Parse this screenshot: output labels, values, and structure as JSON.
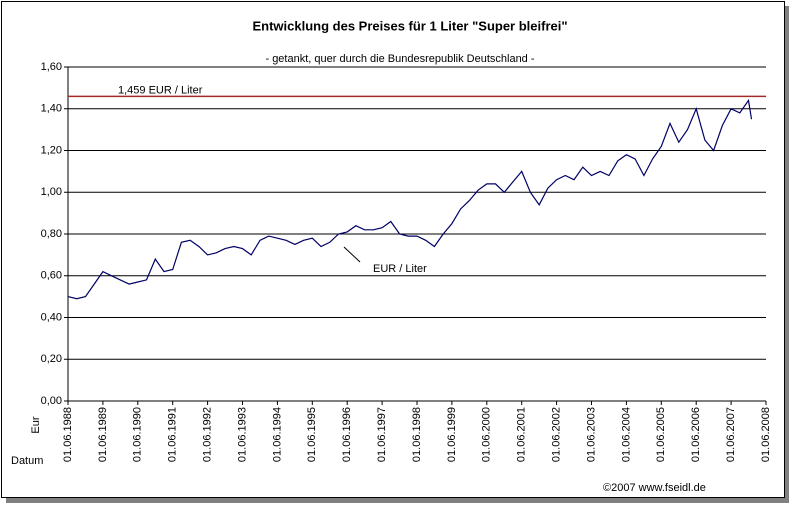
{
  "chart_data": {
    "type": "line",
    "title": "Entwicklung des Preises für 1 Liter \"Super bleifrei\"",
    "subtitle": "- getankt, quer durch die Bundesrepublik Deutschland -",
    "y_label": "Eur",
    "x_label": "Datum",
    "footer": "©2007 www.fseidl.de",
    "x": [
      "01.06.1988",
      "01.09.1988",
      "01.12.1988",
      "01.03.1989",
      "01.06.1989",
      "01.09.1989",
      "01.12.1989",
      "01.03.1990",
      "01.06.1990",
      "01.09.1990",
      "01.12.1990",
      "01.03.1991",
      "01.06.1991",
      "01.09.1991",
      "01.12.1991",
      "01.03.1992",
      "01.06.1992",
      "01.09.1992",
      "01.12.1992",
      "01.03.1993",
      "01.06.1993",
      "01.09.1993",
      "01.12.1993",
      "01.03.1994",
      "01.06.1994",
      "01.09.1994",
      "01.12.1994",
      "01.03.1995",
      "01.06.1995",
      "01.09.1995",
      "01.12.1995",
      "01.03.1996",
      "01.06.1996",
      "01.09.1996",
      "01.12.1996",
      "01.03.1997",
      "01.06.1997",
      "01.09.1997",
      "01.12.1997",
      "01.03.1998",
      "01.06.1998",
      "01.09.1998",
      "01.12.1998",
      "01.03.1999",
      "01.06.1999",
      "01.09.1999",
      "01.12.1999",
      "01.03.2000",
      "01.06.2000",
      "01.09.2000",
      "01.12.2000",
      "01.03.2001",
      "01.06.2001",
      "01.09.2001",
      "01.12.2001",
      "01.03.2002",
      "01.06.2002",
      "01.09.2002",
      "01.12.2002",
      "01.03.2003",
      "01.06.2003",
      "01.09.2003",
      "01.12.2003",
      "01.03.2004",
      "01.06.2004",
      "01.09.2004",
      "01.12.2004",
      "01.03.2005",
      "01.06.2005",
      "01.09.2005",
      "01.12.2005",
      "01.03.2006",
      "01.06.2006",
      "01.09.2006",
      "01.12.2006",
      "01.03.2007",
      "01.06.2007",
      "01.09.2007",
      "01.12.2007",
      "01.01.2008"
    ],
    "series": [
      {
        "name": "EUR / Liter",
        "color": "#000066",
        "values": [
          0.5,
          0.49,
          0.5,
          0.56,
          0.62,
          0.6,
          0.58,
          0.56,
          0.57,
          0.58,
          0.68,
          0.62,
          0.63,
          0.76,
          0.77,
          0.74,
          0.7,
          0.71,
          0.73,
          0.74,
          0.73,
          0.7,
          0.77,
          0.79,
          0.78,
          0.77,
          0.75,
          0.77,
          0.78,
          0.74,
          0.76,
          0.8,
          0.81,
          0.84,
          0.82,
          0.82,
          0.83,
          0.86,
          0.8,
          0.79,
          0.79,
          0.77,
          0.74,
          0.8,
          0.85,
          0.92,
          0.96,
          1.01,
          1.04,
          1.04,
          1.0,
          1.05,
          1.1,
          1.0,
          0.94,
          1.02,
          1.06,
          1.08,
          1.06,
          1.12,
          1.08,
          1.1,
          1.08,
          1.15,
          1.18,
          1.16,
          1.08,
          1.16,
          1.22,
          1.33,
          1.24,
          1.3,
          1.4,
          1.25,
          1.2,
          1.32,
          1.4,
          1.38,
          1.44,
          1.35
        ]
      }
    ],
    "reference_line": {
      "value": 1.459,
      "label": "1,459 EUR / Liter",
      "color": "#a52a2a"
    },
    "xlim": [
      "01.06.1988",
      "01.06.2008"
    ],
    "xticks": [
      "01.06.1988",
      "01.06.1989",
      "01.06.1990",
      "01.06.1991",
      "01.06.1992",
      "01.06.1993",
      "01.06.1994",
      "01.06.1995",
      "01.06.1996",
      "01.06.1997",
      "01.06.1998",
      "01.06.1999",
      "01.06.2000",
      "01.06.2001",
      "01.06.2002",
      "01.06.2003",
      "01.06.2004",
      "01.06.2005",
      "01.06.2006",
      "01.06.2007",
      "01.06.2008"
    ],
    "ylim": [
      0,
      1.6
    ],
    "yticks": [
      {
        "value": 0,
        "label": "0,00"
      },
      {
        "value": 0.2,
        "label": "0,20"
      },
      {
        "value": 0.4,
        "label": "0,40"
      },
      {
        "value": 0.6,
        "label": "0,60"
      },
      {
        "value": 0.8,
        "label": "0,80"
      },
      {
        "value": 1.0,
        "label": "1,00"
      },
      {
        "value": 1.2,
        "label": "1,20"
      },
      {
        "value": 1.4,
        "label": "1,40"
      },
      {
        "value": 1.6,
        "label": "1,60"
      }
    ],
    "grid": true
  }
}
